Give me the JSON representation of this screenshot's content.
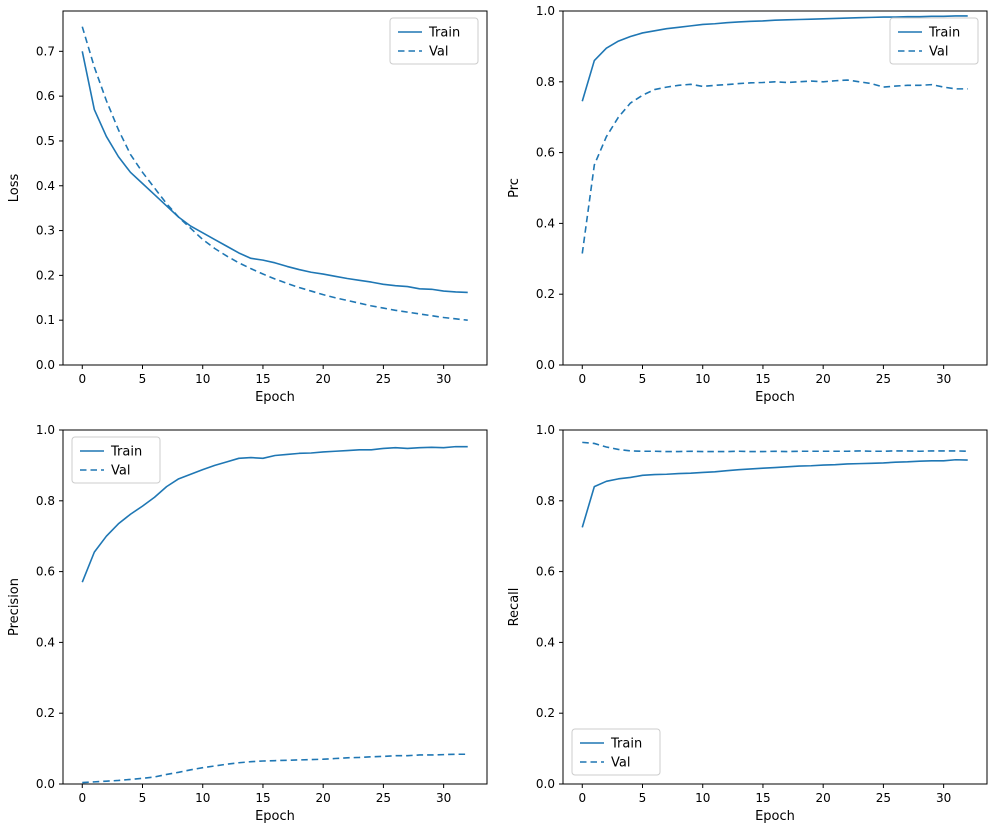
{
  "page": {
    "background": "#ffffff"
  },
  "colors": {
    "line": "#1f77b4",
    "axis": "#000000",
    "legend_border": "#cccccc",
    "legend_fill": "#ffffff"
  },
  "chart_data": [
    {
      "type": "line",
      "title": "",
      "xlabel": "Epoch",
      "ylabel": "Loss",
      "xlim": [
        -1.6,
        33.6
      ],
      "ylim": [
        0.0,
        0.79
      ],
      "xticks": [
        0,
        5,
        10,
        15,
        20,
        25,
        30
      ],
      "yticks": [
        0.0,
        0.1,
        0.2,
        0.3,
        0.4,
        0.5,
        0.6,
        0.7
      ],
      "xtick_decimals": 0,
      "ytick_decimals": 1,
      "grid": false,
      "legend_position": "top-right",
      "x": [
        0,
        1,
        2,
        3,
        4,
        5,
        6,
        7,
        8,
        9,
        10,
        11,
        12,
        13,
        14,
        15,
        16,
        17,
        18,
        19,
        20,
        21,
        22,
        23,
        24,
        25,
        26,
        27,
        28,
        29,
        30,
        31,
        32
      ],
      "series": [
        {
          "name": "Train",
          "style": "solid",
          "values": [
            0.7,
            0.57,
            0.51,
            0.465,
            0.43,
            0.405,
            0.38,
            0.355,
            0.33,
            0.31,
            0.295,
            0.28,
            0.265,
            0.25,
            0.238,
            0.234,
            0.228,
            0.22,
            0.213,
            0.207,
            0.203,
            0.198,
            0.193,
            0.189,
            0.185,
            0.18,
            0.177,
            0.175,
            0.17,
            0.169,
            0.165,
            0.163,
            0.162
          ]
        },
        {
          "name": "Val",
          "style": "dashed",
          "values": [
            0.755,
            0.665,
            0.59,
            0.525,
            0.47,
            0.43,
            0.395,
            0.36,
            0.33,
            0.305,
            0.28,
            0.26,
            0.243,
            0.228,
            0.215,
            0.203,
            0.192,
            0.182,
            0.173,
            0.165,
            0.157,
            0.15,
            0.144,
            0.138,
            0.132,
            0.127,
            0.122,
            0.118,
            0.114,
            0.11,
            0.106,
            0.103,
            0.1
          ]
        }
      ]
    },
    {
      "type": "line",
      "title": "",
      "xlabel": "Epoch",
      "ylabel": "Prc",
      "xlim": [
        -1.6,
        33.6
      ],
      "ylim": [
        0.0,
        1.0
      ],
      "xticks": [
        0,
        5,
        10,
        15,
        20,
        25,
        30
      ],
      "yticks": [
        0.0,
        0.2,
        0.4,
        0.6,
        0.8,
        1.0
      ],
      "xtick_decimals": 0,
      "ytick_decimals": 1,
      "grid": false,
      "legend_position": "top-right",
      "x": [
        0,
        1,
        2,
        3,
        4,
        5,
        6,
        7,
        8,
        9,
        10,
        11,
        12,
        13,
        14,
        15,
        16,
        17,
        18,
        19,
        20,
        21,
        22,
        23,
        24,
        25,
        26,
        27,
        28,
        29,
        30,
        31,
        32
      ],
      "series": [
        {
          "name": "Train",
          "style": "solid",
          "values": [
            0.745,
            0.86,
            0.895,
            0.915,
            0.928,
            0.938,
            0.944,
            0.95,
            0.954,
            0.958,
            0.962,
            0.964,
            0.967,
            0.969,
            0.971,
            0.972,
            0.974,
            0.975,
            0.976,
            0.977,
            0.978,
            0.979,
            0.98,
            0.981,
            0.982,
            0.983,
            0.983,
            0.984,
            0.984,
            0.985,
            0.985,
            0.986,
            0.986
          ]
        },
        {
          "name": "Val",
          "style": "dashed",
          "values": [
            0.315,
            0.565,
            0.645,
            0.7,
            0.74,
            0.762,
            0.778,
            0.785,
            0.79,
            0.793,
            0.787,
            0.79,
            0.792,
            0.795,
            0.797,
            0.798,
            0.8,
            0.798,
            0.8,
            0.802,
            0.8,
            0.803,
            0.805,
            0.8,
            0.795,
            0.785,
            0.788,
            0.79,
            0.79,
            0.792,
            0.785,
            0.78,
            0.78
          ]
        }
      ]
    },
    {
      "type": "line",
      "title": "",
      "xlabel": "Epoch",
      "ylabel": "Precision",
      "xlim": [
        -1.6,
        33.6
      ],
      "ylim": [
        0.0,
        1.0
      ],
      "xticks": [
        0,
        5,
        10,
        15,
        20,
        25,
        30
      ],
      "yticks": [
        0.0,
        0.2,
        0.4,
        0.6,
        0.8,
        1.0
      ],
      "xtick_decimals": 0,
      "ytick_decimals": 1,
      "grid": false,
      "legend_position": "top-left",
      "x": [
        0,
        1,
        2,
        3,
        4,
        5,
        6,
        7,
        8,
        9,
        10,
        11,
        12,
        13,
        14,
        15,
        16,
        17,
        18,
        19,
        20,
        21,
        22,
        23,
        24,
        25,
        26,
        27,
        28,
        29,
        30,
        31,
        32
      ],
      "series": [
        {
          "name": "Train",
          "style": "solid",
          "values": [
            0.57,
            0.655,
            0.7,
            0.735,
            0.762,
            0.785,
            0.81,
            0.84,
            0.862,
            0.875,
            0.888,
            0.9,
            0.91,
            0.92,
            0.922,
            0.92,
            0.928,
            0.931,
            0.934,
            0.935,
            0.938,
            0.94,
            0.942,
            0.944,
            0.944,
            0.948,
            0.95,
            0.948,
            0.95,
            0.951,
            0.95,
            0.953,
            0.953
          ]
        },
        {
          "name": "Val",
          "style": "dashed",
          "values": [
            0.004,
            0.006,
            0.008,
            0.01,
            0.013,
            0.016,
            0.02,
            0.027,
            0.033,
            0.04,
            0.046,
            0.051,
            0.056,
            0.06,
            0.063,
            0.065,
            0.066,
            0.067,
            0.068,
            0.069,
            0.07,
            0.072,
            0.074,
            0.075,
            0.077,
            0.078,
            0.08,
            0.08,
            0.082,
            0.082,
            0.083,
            0.084,
            0.084
          ]
        }
      ]
    },
    {
      "type": "line",
      "title": "",
      "xlabel": "Epoch",
      "ylabel": "Recall",
      "xlim": [
        -1.6,
        33.6
      ],
      "ylim": [
        0.0,
        1.0
      ],
      "xticks": [
        0,
        5,
        10,
        15,
        20,
        25,
        30
      ],
      "yticks": [
        0.0,
        0.2,
        0.4,
        0.6,
        0.8,
        1.0
      ],
      "xtick_decimals": 0,
      "ytick_decimals": 1,
      "grid": false,
      "legend_position": "bottom-left",
      "x": [
        0,
        1,
        2,
        3,
        4,
        5,
        6,
        7,
        8,
        9,
        10,
        11,
        12,
        13,
        14,
        15,
        16,
        17,
        18,
        19,
        20,
        21,
        22,
        23,
        24,
        25,
        26,
        27,
        28,
        29,
        30,
        31,
        32
      ],
      "series": [
        {
          "name": "Train",
          "style": "solid",
          "values": [
            0.725,
            0.84,
            0.855,
            0.862,
            0.866,
            0.872,
            0.874,
            0.875,
            0.877,
            0.878,
            0.88,
            0.882,
            0.885,
            0.888,
            0.89,
            0.892,
            0.894,
            0.896,
            0.898,
            0.899,
            0.901,
            0.902,
            0.904,
            0.905,
            0.906,
            0.907,
            0.909,
            0.91,
            0.912,
            0.913,
            0.913,
            0.916,
            0.915
          ]
        },
        {
          "name": "Val",
          "style": "dashed",
          "values": [
            0.965,
            0.962,
            0.952,
            0.945,
            0.941,
            0.94,
            0.94,
            0.939,
            0.939,
            0.94,
            0.939,
            0.939,
            0.939,
            0.94,
            0.939,
            0.939,
            0.94,
            0.939,
            0.94,
            0.94,
            0.94,
            0.94,
            0.94,
            0.941,
            0.94,
            0.94,
            0.941,
            0.941,
            0.94,
            0.941,
            0.941,
            0.941,
            0.94
          ]
        }
      ]
    }
  ]
}
